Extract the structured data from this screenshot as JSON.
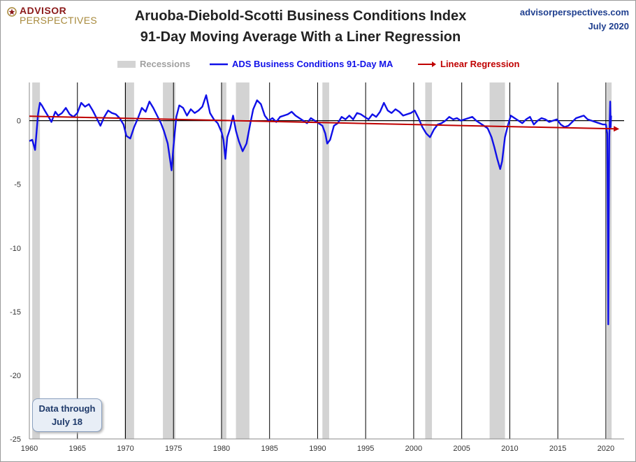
{
  "header": {
    "logo_line1": "ADVISOR",
    "logo_line2": "PERSPECTIVES",
    "title_line1": "Aruoba-Diebold-Scotti Business Conditions Index",
    "title_line2": "91-Day Moving Average With a Liner Regression",
    "site": "advisorperspectives.com",
    "date": "July 2020"
  },
  "note": {
    "line1": "Data through",
    "line2": "July 18"
  },
  "colors": {
    "series": "#1010e8",
    "regression": "#c00000",
    "recession": "#d3d3d3",
    "zero_line": "#000000"
  },
  "chart_data": {
    "type": "line",
    "xlim": [
      1960,
      2021.9
    ],
    "ylim": [
      -25,
      3
    ],
    "xticks": [
      1960,
      1965,
      1970,
      1975,
      1980,
      1985,
      1990,
      1995,
      2000,
      2005,
      2010,
      2015,
      2020
    ],
    "yticks": [
      0,
      -5,
      -10,
      -15,
      -20,
      -25
    ],
    "legend": [
      "Recessions",
      "ADS Business Conditions 91-Day MA",
      "Linear Regression"
    ],
    "legend_position": "top",
    "recessions": [
      [
        1960.3,
        1961.1
      ],
      [
        1969.9,
        1970.9
      ],
      [
        1973.9,
        1975.2
      ],
      [
        1980.0,
        1980.5
      ],
      [
        1981.5,
        1982.9
      ],
      [
        1990.5,
        1991.2
      ],
      [
        2001.2,
        2001.9
      ],
      [
        2007.9,
        2009.5
      ],
      [
        2020.1,
        2020.6
      ]
    ],
    "vertical_gridlines": [
      1965,
      1970,
      1975,
      1980,
      1985,
      1990,
      1995,
      2000,
      2005,
      2010,
      2015,
      2020
    ],
    "series": [
      {
        "name": "ADS Business Conditions 91-Day MA",
        "x": [
          1960.0,
          1960.3,
          1960.6,
          1960.9,
          1961.1,
          1961.3,
          1961.6,
          1962.0,
          1962.3,
          1962.7,
          1963.0,
          1963.4,
          1963.8,
          1964.2,
          1964.6,
          1965.0,
          1965.4,
          1965.8,
          1966.2,
          1966.6,
          1967.0,
          1967.4,
          1967.8,
          1968.2,
          1968.6,
          1969.0,
          1969.4,
          1969.8,
          1970.1,
          1970.5,
          1970.9,
          1971.3,
          1971.7,
          1972.1,
          1972.5,
          1972.9,
          1973.3,
          1973.7,
          1974.0,
          1974.4,
          1974.8,
          1975.0,
          1975.3,
          1975.6,
          1976.0,
          1976.4,
          1976.8,
          1977.2,
          1977.6,
          1978.0,
          1978.4,
          1978.8,
          1979.2,
          1979.6,
          1980.0,
          1980.2,
          1980.4,
          1980.6,
          1980.9,
          1981.2,
          1981.5,
          1981.8,
          1982.2,
          1982.6,
          1983.0,
          1983.3,
          1983.7,
          1984.1,
          1984.5,
          1984.9,
          1985.3,
          1985.7,
          1986.1,
          1986.5,
          1986.9,
          1987.3,
          1987.7,
          1988.1,
          1988.5,
          1988.9,
          1989.3,
          1989.7,
          1990.1,
          1990.5,
          1990.8,
          1991.0,
          1991.3,
          1991.7,
          1992.1,
          1992.5,
          1992.9,
          1993.3,
          1993.7,
          1994.1,
          1994.5,
          1994.9,
          1995.3,
          1995.7,
          1996.1,
          1996.5,
          1996.9,
          1997.3,
          1997.7,
          1998.1,
          1998.5,
          1998.9,
          1999.3,
          1999.7,
          2000.1,
          2000.5,
          2000.9,
          2001.3,
          2001.7,
          2002.1,
          2002.5,
          2002.9,
          2003.3,
          2003.7,
          2004.1,
          2004.5,
          2004.9,
          2005.3,
          2005.7,
          2006.1,
          2006.5,
          2006.9,
          2007.3,
          2007.7,
          2008.1,
          2008.4,
          2008.7,
          2009.0,
          2009.2,
          2009.5,
          2009.8,
          2010.1,
          2010.5,
          2010.9,
          2011.3,
          2011.7,
          2012.1,
          2012.5,
          2012.9,
          2013.3,
          2013.7,
          2014.1,
          2014.5,
          2014.9,
          2015.3,
          2015.7,
          2016.1,
          2016.5,
          2016.9,
          2017.3,
          2017.7,
          2018.1,
          2018.5,
          2018.9,
          2019.3,
          2019.7,
          2020.0,
          2020.15,
          2020.25,
          2020.3,
          2020.35,
          2020.45,
          2020.5,
          2020.55
        ],
        "y": [
          -1.6,
          -1.5,
          -2.3,
          0.5,
          1.4,
          1.2,
          0.8,
          0.3,
          -0.1,
          0.7,
          0.4,
          0.6,
          1.0,
          0.5,
          0.3,
          0.6,
          1.4,
          1.1,
          1.3,
          0.8,
          0.2,
          -0.4,
          0.3,
          0.8,
          0.6,
          0.5,
          0.2,
          -0.3,
          -1.2,
          -1.4,
          -0.5,
          0.2,
          1.0,
          0.7,
          1.5,
          1.0,
          0.4,
          -0.2,
          -0.8,
          -1.8,
          -3.9,
          -2.0,
          0.3,
          1.2,
          1.0,
          0.4,
          0.9,
          0.6,
          0.8,
          1.1,
          2.0,
          0.6,
          0.1,
          -0.2,
          -0.9,
          -1.5,
          -3.0,
          -1.3,
          -0.6,
          0.4,
          -0.8,
          -1.6,
          -2.4,
          -1.8,
          -0.2,
          0.9,
          1.6,
          1.3,
          0.4,
          0.0,
          0.2,
          -0.1,
          0.3,
          0.4,
          0.5,
          0.7,
          0.4,
          0.2,
          0.0,
          -0.2,
          0.2,
          0.0,
          -0.2,
          -0.4,
          -1.0,
          -1.8,
          -1.5,
          -0.4,
          -0.2,
          0.3,
          0.1,
          0.4,
          0.1,
          0.6,
          0.5,
          0.3,
          0.1,
          0.5,
          0.3,
          0.7,
          1.4,
          0.8,
          0.6,
          0.9,
          0.7,
          0.4,
          0.5,
          0.6,
          0.8,
          0.2,
          -0.5,
          -1.0,
          -1.3,
          -0.7,
          -0.3,
          -0.2,
          0.0,
          0.3,
          0.1,
          0.2,
          0.0,
          0.1,
          0.2,
          0.3,
          0.0,
          -0.2,
          -0.4,
          -0.6,
          -1.3,
          -2.1,
          -3.0,
          -3.8,
          -3.2,
          -1.3,
          -0.4,
          0.4,
          0.2,
          0.0,
          -0.2,
          0.1,
          0.3,
          -0.3,
          0.0,
          0.2,
          0.1,
          -0.1,
          0.0,
          0.1,
          -0.3,
          -0.5,
          -0.4,
          -0.1,
          0.2,
          0.3,
          0.4,
          0.1,
          0.0,
          -0.1,
          -0.2,
          -0.3,
          -0.3,
          -1.0,
          -16.0,
          -8.0,
          -1.5,
          1.5,
          -0.5,
          0.4
        ]
      },
      {
        "name": "Linear Regression",
        "x": [
          1960.0,
          2021.4
        ],
        "y": [
          0.35,
          -0.65
        ]
      }
    ]
  }
}
